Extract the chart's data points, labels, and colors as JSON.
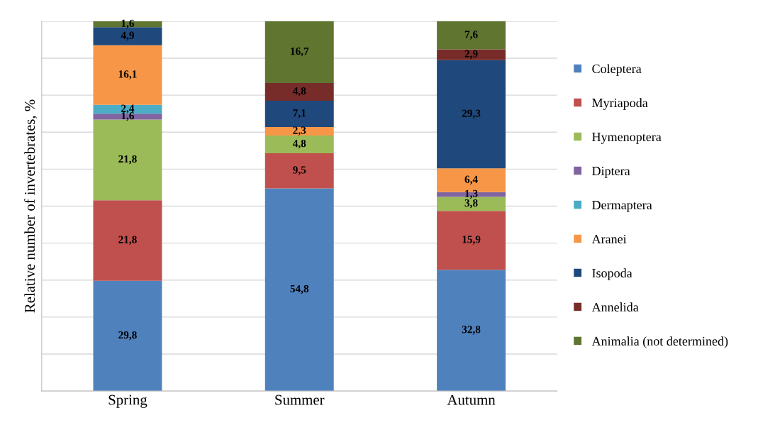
{
  "chart_data": {
    "type": "bar",
    "stacked": true,
    "ylabel": "Relative number of invertebrates, %",
    "categories": [
      "Spring",
      "Summer",
      "Autumn"
    ],
    "series": [
      {
        "name": "Coleptera",
        "color": "#4f81bd",
        "values": [
          29.8,
          54.8,
          32.8
        ],
        "value_labels": [
          "29,8",
          "54,8",
          "32,8"
        ]
      },
      {
        "name": "Myriapoda",
        "color": "#c0504d",
        "values": [
          21.8,
          9.5,
          15.9
        ],
        "value_labels": [
          "21,8",
          "9,5",
          "15,9"
        ]
      },
      {
        "name": "Hymenoptera",
        "color": "#9bbb59",
        "values": [
          21.8,
          4.8,
          3.8
        ],
        "value_labels": [
          "21,8",
          "4,8",
          "3,8"
        ]
      },
      {
        "name": "Diptera",
        "color": "#8064a2",
        "values": [
          1.6,
          null,
          1.3
        ],
        "value_labels": [
          "1,6",
          null,
          "1,3"
        ]
      },
      {
        "name": "Dermaptera",
        "color": "#4bacc6",
        "values": [
          2.4,
          null,
          null
        ],
        "value_labels": [
          "2,4",
          null,
          null
        ]
      },
      {
        "name": "Aranei",
        "color": "#f79646",
        "values": [
          16.1,
          2.3,
          6.4
        ],
        "value_labels": [
          "16,1",
          "2,3",
          "6,4"
        ]
      },
      {
        "name": "Isopoda",
        "color": "#1f497d",
        "values": [
          4.9,
          7.1,
          29.3
        ],
        "value_labels": [
          "4,9",
          "7,1",
          "29,3"
        ]
      },
      {
        "name": "Annelida",
        "color": "#772c2a",
        "values": [
          null,
          4.8,
          2.9
        ],
        "value_labels": [
          null,
          "4,8",
          "2,9"
        ]
      },
      {
        "name": "Animalia (not determined)",
        "color": "#5f7530",
        "values": [
          1.6,
          16.7,
          7.6
        ],
        "value_labels": [
          "1,6",
          "16,7",
          "7,6"
        ]
      }
    ],
    "ylim": [
      0,
      100
    ],
    "yticks": [
      {
        "value": 0,
        "label": null
      },
      {
        "value": 10,
        "label": null
      },
      {
        "value": 20,
        "label": null
      },
      {
        "value": 30,
        "label": null
      },
      {
        "value": 40,
        "label": null
      },
      {
        "value": 50,
        "label": null
      },
      {
        "value": 60,
        "label": null
      },
      {
        "value": 70,
        "label": null
      },
      {
        "value": 80,
        "label": null
      },
      {
        "value": 90,
        "label": null
      },
      {
        "value": 100,
        "label": null
      }
    ],
    "tick_labels": "x",
    "grid": "y",
    "legend": "right"
  }
}
